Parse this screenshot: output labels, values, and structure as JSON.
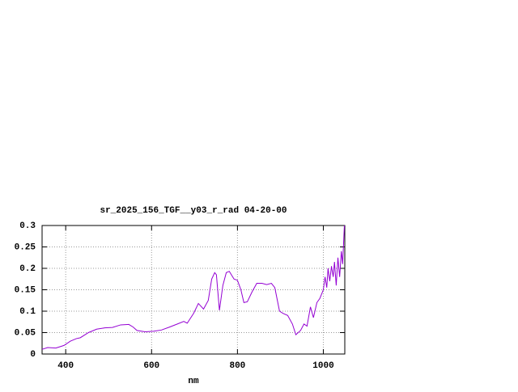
{
  "chart_data": {
    "type": "line",
    "title": "sr_2025_156_TGF__y03_r_rad 04-20-00",
    "x_label": "nm",
    "x": [
      345,
      358,
      377,
      396,
      411,
      425,
      434,
      453,
      472,
      491,
      509,
      528,
      547,
      557,
      566,
      585,
      604,
      623,
      642,
      660,
      675,
      683,
      698,
      709,
      721,
      732,
      740,
      747,
      751,
      758,
      766,
      774,
      781,
      792,
      800,
      808,
      815,
      823,
      834,
      845,
      857,
      868,
      879,
      887,
      898,
      906,
      917,
      928,
      936,
      947,
      955,
      962,
      970,
      977,
      985,
      992,
      1000,
      1004,
      1008,
      1011,
      1015,
      1019,
      1023,
      1026,
      1030,
      1034,
      1038,
      1042,
      1045,
      1049
    ],
    "values": [
      0.011,
      0.015,
      0.014,
      0.02,
      0.03,
      0.036,
      0.038,
      0.05,
      0.058,
      0.061,
      0.062,
      0.068,
      0.069,
      0.063,
      0.055,
      0.052,
      0.053,
      0.056,
      0.063,
      0.07,
      0.076,
      0.072,
      0.095,
      0.118,
      0.105,
      0.125,
      0.175,
      0.19,
      0.185,
      0.102,
      0.16,
      0.19,
      0.193,
      0.175,
      0.172,
      0.15,
      0.12,
      0.122,
      0.145,
      0.165,
      0.165,
      0.162,
      0.165,
      0.155,
      0.1,
      0.095,
      0.09,
      0.07,
      0.045,
      0.055,
      0.07,
      0.065,
      0.11,
      0.085,
      0.12,
      0.13,
      0.15,
      0.18,
      0.155,
      0.2,
      0.17,
      0.205,
      0.18,
      0.215,
      0.16,
      0.225,
      0.18,
      0.24,
      0.21,
      0.3
    ],
    "color": "#9400d3",
    "xlim": [
      345,
      1050
    ],
    "ylim": [
      0,
      0.3
    ],
    "xticks": [
      400,
      600,
      800,
      1000
    ],
    "yticks": [
      0,
      0.05,
      0.1,
      0.15,
      0.2,
      0.25,
      0.3
    ],
    "grid": true
  }
}
